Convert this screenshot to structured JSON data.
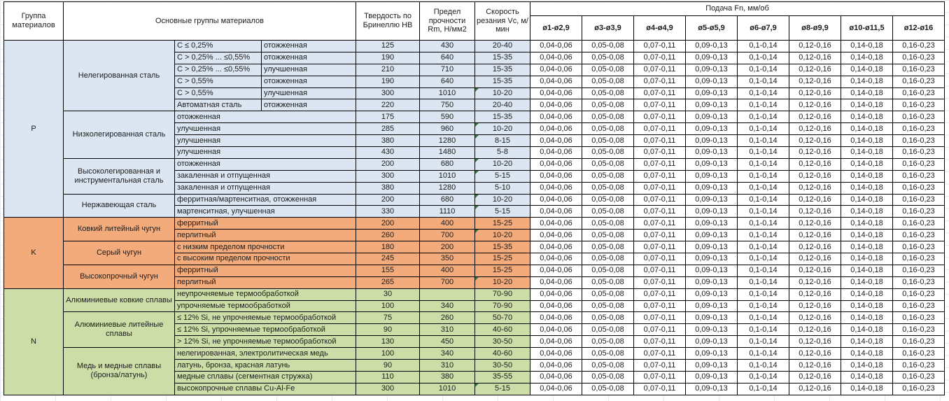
{
  "header": {
    "col_group": "Группа материалов",
    "col_main": "Основные группы материалов",
    "col_hb": "Твердость по Бринеллю HB",
    "col_rm": "Предел прочности Rm, Н/мм2",
    "col_vc": "Скорость резания Vc, м/мин",
    "feed_title": "Подача Fn, мм/об",
    "feed_cols": [
      "ø1-ø2,9",
      "ø3-ø3,9",
      "ø4-ø4,9",
      "ø5-ø5,9",
      "ø6-ø7,9",
      "ø8-ø9,9",
      "ø10-ø11,5",
      "ø12-ø16"
    ]
  },
  "feed_values": [
    "0,04-0,06",
    "0,05-0,08",
    "0,07-0,11",
    "0,09-0,13",
    "0,1-0,14",
    "0,12-0,16",
    "0,14-0,18",
    "0,16-0,23"
  ],
  "colors": {
    "p_section": "#dbe6f2",
    "k_section": "#f4ab7b",
    "n_section": "#cdddа8",
    "n_section_fix": "#cddda8",
    "flag_green": "#2e7d32",
    "border": "#000000"
  },
  "sections": [
    {
      "group": "P",
      "key": "p_section",
      "subgroups": [
        {
          "name": "Нелегированная сталь",
          "rows": [
            {
              "c1": "C ≤ 0,25%",
              "c2": "отожженная",
              "hb": "125",
              "rm": "430",
              "vc": "20-40",
              "flag": false
            },
            {
              "c1": "C > 0,25% ... ≤0,55%",
              "c2": "отожженная",
              "hb": "190",
              "rm": "640",
              "vc": "15-35",
              "flag": false
            },
            {
              "c1": "C > 0,25% ... ≤0,55%",
              "c2": "улучшенная",
              "hb": "210",
              "rm": "710",
              "vc": "15-35",
              "flag": false
            },
            {
              "c1": "C > 0,55%",
              "c2": "отожженная",
              "hb": "190",
              "rm": "640",
              "vc": "15-35",
              "flag": false
            },
            {
              "c1": "C > 0,55%",
              "c2": "улучшенная",
              "hb": "300",
              "rm": "1010",
              "vc": "10-20",
              "flag": true
            },
            {
              "c1": "Автоматная сталь",
              "c2": "отожженная",
              "hb": "220",
              "rm": "750",
              "vc": "20-40",
              "flag": false
            }
          ]
        },
        {
          "name": "Низколегированная сталь",
          "rows": [
            {
              "c1": "отожженная",
              "hb": "175",
              "rm": "590",
              "vc": "15-35",
              "flag": false
            },
            {
              "c1": "улучшенная",
              "hb": "285",
              "rm": "960",
              "vc": "10-20",
              "flag": true
            },
            {
              "c1": "улучшенная",
              "hb": "380",
              "rm": "1280",
              "vc": "8-15",
              "flag": true
            },
            {
              "c1": "улучшенная",
              "hb": "430",
              "rm": "1480",
              "vc": "5-8",
              "flag": false
            }
          ]
        },
        {
          "name": "Высоколегированная и инструментальная сталь",
          "rows": [
            {
              "c1": "отожженная",
              "hb": "200",
              "rm": "680",
              "vc": "10-20",
              "flag": true
            },
            {
              "c1": "закаленная и отпущенная",
              "hb": "300",
              "rm": "1010",
              "vc": "5-15",
              "flag": true
            },
            {
              "c1": "закаленная и отпущенная",
              "hb": "380",
              "rm": "1280",
              "vc": "5-10",
              "flag": false
            }
          ]
        },
        {
          "name": "Нержавеющая сталь",
          "rows": [
            {
              "c1": "ферритная/мартенситная, отожженная",
              "hb": "200",
              "rm": "680",
              "vc": "10-20",
              "flag": true
            },
            {
              "c1": "мартенситная, улучшенная",
              "hb": "330",
              "rm": "1110",
              "vc": "5-15",
              "flag": true
            }
          ]
        }
      ]
    },
    {
      "group": "K",
      "key": "k_section",
      "subgroups": [
        {
          "name": "Ковкий литейный чугун",
          "rows": [
            {
              "c1": "ферритный",
              "hb": "200",
              "rm": "400",
              "vc": "15-25",
              "flag": false
            },
            {
              "c1": "перлитный",
              "hb": "260",
              "rm": "700",
              "vc": "10-20",
              "flag": true
            }
          ]
        },
        {
          "name": "Серый чугун",
          "rows": [
            {
              "c1": "с низким пределом прочности",
              "hb": "180",
              "rm": "200",
              "vc": "15-35",
              "flag": false
            },
            {
              "c1": "с высоким пределом прочности",
              "hb": "245",
              "rm": "350",
              "vc": "15-25",
              "flag": false
            }
          ]
        },
        {
          "name": "Высокопрочный чугун",
          "rows": [
            {
              "c1": "ферритный",
              "hb": "155",
              "rm": "400",
              "vc": "15-25",
              "flag": false
            },
            {
              "c1": "перлитный",
              "hb": "265",
              "rm": "700",
              "vc": "10-20",
              "flag": true
            }
          ]
        }
      ]
    },
    {
      "group": "N",
      "key": "n_section_fix",
      "subgroups": [
        {
          "name": "Алюминиевые ковкие сплавы",
          "rows": [
            {
              "c1": "неупрочняемые термообработкой",
              "hb": "30",
              "rm": "",
              "vc": "70-90",
              "flag": false
            },
            {
              "c1": "упрочняемые термообработкой",
              "hb": "100",
              "rm": "340",
              "vc": "70-90",
              "flag": false
            }
          ]
        },
        {
          "name": "Алюминиевые литейные сплавы",
          "rows": [
            {
              "c1": "≤ 12% Si, не упрочняемые термообработкой",
              "hb": "75",
              "rm": "260",
              "vc": "50-70",
              "flag": false
            },
            {
              "c1": "≤ 12% Si, упрочняемые термообработкой",
              "hb": "90",
              "rm": "310",
              "vc": "40-60",
              "flag": false
            },
            {
              "c1": "> 12% Si, не упрочняемые термообработкой",
              "hb": "130",
              "rm": "450",
              "vc": "30-50",
              "flag": false
            }
          ]
        },
        {
          "name": "Медь и медные сплавы (бронза/латунь)",
          "rows": [
            {
              "c1": "нелегированная, электролитическая медь",
              "hb": "100",
              "rm": "340",
              "vc": "40-60",
              "flag": false
            },
            {
              "c1": "латунь, бронза, красная латунь",
              "hb": "90",
              "rm": "310",
              "vc": "30-50",
              "flag": false
            },
            {
              "c1": "медные сплавы (сегментная стружка)",
              "hb": "110",
              "rm": "380",
              "vc": "35-55",
              "flag": false
            },
            {
              "c1": "высокопрочные сплавы Cu-Al-Fe",
              "hb": "300",
              "rm": "1010",
              "vc": "5-15",
              "flag": true
            }
          ]
        }
      ]
    }
  ]
}
